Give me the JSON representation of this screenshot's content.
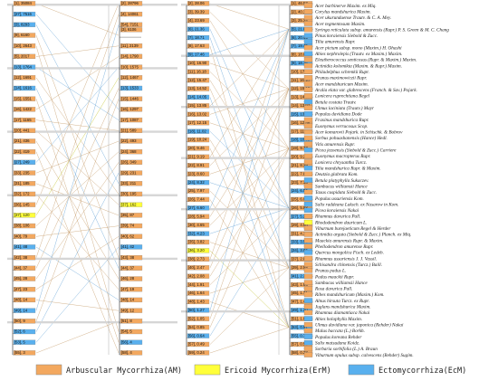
{
  "colors": {
    "am": "#f3a85f",
    "erm": "#ffff3a",
    "ecm": "#59b0ee",
    "tree_line": "#444444",
    "link_am": "#c8a070",
    "link_ecm": "#6aa6d8",
    "link_erm": "#c4c430"
  },
  "legend": [
    {
      "key": "am",
      "label": "Arbuscular Mycorrhiza(AM)"
    },
    {
      "key": "erm",
      "label": "Ericoid Mycorrhiza(ErM)"
    },
    {
      "key": "ecm",
      "label": "Ectomycorrhiza(EcM)"
    }
  ],
  "species": [
    "Acer barbinerve Maxim. ex Miq.",
    "Corylus mandshurica Maxim.",
    "Acer ukurunduense Trautv. & C. A. Mey.",
    "Acer tegmentosum Maxim.",
    "Syringa reticulata subsp. amurensis (Rupr.) P. S. Green & M. C. Chang",
    "Pinus koraiensis Siebold & Zucc.",
    "Tilia amurensis Rupr.",
    "Acer pictum subsp. mono (Maxim.) H. Ohashi",
    "Abies nephrolepis (Trautv. ex Maxim.) Maxim.",
    "Eleutherococcus senticosus (Rupr. & Maxim.) Maxim.",
    "Actinidia kolomikta (Maxim. & Rupr.) Maxim.",
    "Philadelphus schrenkii Rupr.",
    "Prunus maximowiczii Rupr.",
    "Acer mandshuricum Maxim.",
    "Aralia elata var. glabrescens (Franch. & Sav.) Pojark.",
    "Lonicera ruprechtiana Regel",
    "Betula costata Trautv.",
    "Ulmus laciniata (Trautv.) Mayr",
    "Populus davidiana Dode",
    "Fraxinus mandshurica Rupr.",
    "Euonymus verrucosus Scop.",
    "Acer komarovii Pojark. in Schischk. & Bobrov",
    "Sorbus pohuashanensis (Hance) Hedl.",
    "Vitis amurensis Rupr.",
    "Picea jezoensis (Siebold & Zucc.) Carriere",
    "Euonymus macropterus Rupr.",
    "Lonicera chrysantha Turcz.",
    "Tilia mandshurica Rupr. & Maxim.",
    "Deutzia glabrata Kom.",
    "Betula platyphylla Sukaczev.",
    "Sambucus williamsii Hance",
    "Taxus cuspidata Siebold & Zucc.",
    "Populus ussuriensis Kom.",
    "Salix raddeana Laksch. ex Nasarow in Kom.",
    "Picea koraiensis Nakai",
    "Rhamnus davurica Pall.",
    "Rhododendron dauricum L.",
    "Viburnum burejaeticum Regel & Herder",
    "Actinidia arguta (Siebold & Zucc.) Planch. ex Miq.",
    "Maackia amurensis Rupr. & Maxim.",
    "Phellodendron amurense Rupr.",
    "Quercus mongolica Fisch. ex Ledeb.",
    "Rhamnus ussuriensis J. J. Vassil.",
    "Schisandra chinensis (Turcz.) Baill.",
    "Prunus padus L.",
    "Padus maackii Rupr.",
    "Sambucus williamsii Hance",
    "Rosa davurica Pall.",
    "Ribes mandshuricum (Maxim.) Kom.",
    "Alnus hirsuta Turcz. ex Rupr.",
    "Juglans mandshurica Maxim.",
    "Rhamnus diamantiaca Nakai",
    "Abies holophylla Maxim.",
    "Ulmus davidiana var. japonica (Rehder) Nakai",
    "Malus baccata (L.) Borkh.",
    "Populus koreana Rehder",
    "Salix matsudana Koidz.",
    "Sorbaria sorbifolia (L.) A. Braun",
    "Viburnum opulus subsp. calvescens (Rehder) Sugim."
  ],
  "species_types": [
    "am",
    "am",
    "am",
    "am",
    "am",
    "ecm",
    "ecm",
    "am",
    "ecm",
    "am",
    "am",
    "am",
    "am",
    "am",
    "am",
    "am",
    "ecm",
    "am",
    "ecm",
    "am",
    "am",
    "am",
    "am",
    "am",
    "ecm",
    "am",
    "am",
    "ecm",
    "am",
    "ecm",
    "am",
    "am",
    "ecm",
    "ecm",
    "ecm",
    "am",
    "erm",
    "am",
    "am",
    "am",
    "am",
    "ecm",
    "am",
    "am",
    "am",
    "am",
    "am",
    "am",
    "am",
    "ecm",
    "am",
    "am",
    "ecm",
    "am",
    "am",
    "ecm",
    "ecm",
    "am",
    "am"
  ],
  "trees": [
    {
      "id": "left",
      "rows": [
        {
          "c1": "[1], 35084",
          "c2": "[2], 28796",
          "t1": "am",
          "t2": "am"
        },
        {
          "c1": "[27], 7516",
          "c2": "[4], 14061",
          "t1": "ecm",
          "t2": "am"
        },
        {
          "c1": "[3], 8293",
          "c2": "[54], 7151",
          "t1": "ecm",
          "t2": "am",
          "t3": "am",
          "c3": "[3], 6106"
        },
        {
          "c1": "[9], 6160",
          "c2": "",
          "t1": "am"
        },
        {
          "c1": "[10], 2643",
          "c2": "[11], 2139",
          "t1": "am",
          "t2": "am"
        },
        {
          "c1": "[5], 2017",
          "c2": "[14], 1790",
          "t1": "am",
          "t2": "am"
        },
        {
          "c1": "[13], 1764",
          "c2": "[10], 1575",
          "t1": "ecm",
          "t2": "am"
        },
        {
          "c1": "[12], 1691",
          "c2": "[12], 1467",
          "t1": "am",
          "t2": "am"
        },
        {
          "c1": "[14], 1616",
          "c2": "[13], 1533",
          "t1": "ecm",
          "t2": "ecm"
        },
        {
          "c1": "[15], 1551",
          "c2": "[15], 1446",
          "t1": "am",
          "t2": "am"
        },
        {
          "c1": "[16], 1422",
          "c2": "[16], 1297",
          "t1": "am",
          "t2": "am"
        },
        {
          "c1": "[17], 1165",
          "c2": "[17], 1087",
          "t1": "am",
          "t2": "am"
        },
        {
          "c1": "[20], 441",
          "c2": "[21], 589",
          "t1": "am",
          "t2": "am"
        },
        {
          "c1": "[21], 436",
          "c2": "[22], 493",
          "t1": "am",
          "t2": "am"
        },
        {
          "c1": "[22], 419",
          "c2": "[24], 368",
          "t1": "am",
          "t2": "am"
        },
        {
          "c1": "[27], 249",
          "c2": "[26], 349",
          "t1": "ecm",
          "t2": "am"
        },
        {
          "c1": "[33], 235",
          "c2": "[29], 231",
          "t1": "am",
          "t2": "am"
        },
        {
          "c1": "[31], 185",
          "c2": "[33], 211",
          "t1": "am",
          "t2": "am"
        },
        {
          "c1": "[32], 172",
          "c2": "[30], 195",
          "t1": "am",
          "t2": "am"
        },
        {
          "c1": "[36], 145",
          "c2": "[37], 162",
          "t1": "am",
          "t2": "erm"
        },
        {
          "c1": "[37], 120",
          "c2": "[35], 87",
          "t1": "erm",
          "t2": "am"
        },
        {
          "c1": "[38], 106",
          "c2": "[39], 74",
          "t1": "am",
          "t2": "am"
        },
        {
          "c1": "[40], 79",
          "c2": "[40], 62",
          "t1": "am",
          "t2": "am"
        },
        {
          "c1": "[41], 48",
          "c2": "[41], 42",
          "t1": "ecm",
          "t2": "ecm"
        },
        {
          "c1": "[42], 38",
          "c2": "[43], 38",
          "t1": "am",
          "t2": "am"
        },
        {
          "c1": "[44], 37",
          "c2": "[44], 37",
          "t1": "am",
          "t2": "am"
        },
        {
          "c1": "[45], 28",
          "c2": "[46], 28",
          "t1": "am",
          "t2": "am"
        },
        {
          "c1": "[47], 23",
          "c2": "[47], 19",
          "t1": "am",
          "t2": "am"
        },
        {
          "c1": "[48], 14",
          "c2": "[48], 14",
          "t1": "am",
          "t2": "am"
        },
        {
          "c1": "[49], 14",
          "c2": "[49], 12",
          "t1": "ecm",
          "t2": "am"
        },
        {
          "c1": "[50], 9",
          "c2": "[51], 8",
          "t1": "am",
          "t2": "am"
        },
        {
          "c1": "[52], 6",
          "c2": "[54], 5",
          "t1": "ecm",
          "t2": "am"
        },
        {
          "c1": "[53], 5",
          "c2": "[56], 4",
          "t1": "ecm",
          "t2": "ecm"
        },
        {
          "c1": "[55], 3",
          "c2": "[58], 4",
          "t1": "am",
          "t2": "am"
        }
      ]
    },
    {
      "id": "right",
      "rows": [
        {
          "c1": "[2], 28.06",
          "c2": "[1], 46.53",
          "t1": "am",
          "t2": "am"
        },
        {
          "c1": "[3], 39.39",
          "c2": "[2], 40.18",
          "t1": "am",
          "t2": "am"
        },
        {
          "c1": "[4], 23.69",
          "c2": "[3], 25.34",
          "t1": "am",
          "t2": "am"
        },
        {
          "c1": "[6], 21.36",
          "c2": "[5], 21.87",
          "t1": "ecm",
          "t2": "ecm"
        },
        {
          "c1": "[7], 18.71",
          "c2": "[6], 20.45",
          "t1": "ecm",
          "t2": "ecm"
        },
        {
          "c1": "[8], 17.63",
          "c2": "[7], 19.45",
          "t1": "am",
          "t2": "ecm"
        },
        {
          "c1": "[9], 17.46",
          "c2": "[8], 18.86",
          "t1": "ecm",
          "t2": "am"
        },
        {
          "c1": "[10], 16.90",
          "c2": "[9], 18.16",
          "t1": "am",
          "t2": "ecm"
        },
        {
          "c1": "[11], 16.18",
          "c2": "[10], 17.56",
          "t1": "am",
          "t2": "am"
        },
        {
          "c1": "[12], 15.47",
          "c2": "[11], 16.10",
          "t1": "am",
          "t2": "am"
        },
        {
          "c1": "[13], 14.52",
          "c2": "[12], 15.10",
          "t1": "am",
          "t2": "am"
        },
        {
          "c1": "[14], 14.05",
          "c2": "[13], 14.50",
          "t1": "ecm",
          "t2": "am"
        },
        {
          "c1": "[15], 13.85",
          "c2": "[14], 13.97",
          "t1": "am",
          "t2": "am"
        },
        {
          "c1": "[16], 13.02",
          "c2": "[15], 13.30",
          "t1": "am",
          "t2": "ecm"
        },
        {
          "c1": "[17], 12.15",
          "c2": "[16], 12.56",
          "t1": "am",
          "t2": "am"
        },
        {
          "c1": "[18], 11.02",
          "c2": "[17], 11.84",
          "t1": "ecm",
          "t2": "am"
        },
        {
          "c1": "[19], 10.24",
          "c2": "[18], 10.85",
          "t1": "am",
          "t2": "ecm"
        },
        {
          "c1": "[20], 9.46",
          "c2": "[19], 9.77",
          "t1": "am",
          "t2": "am"
        },
        {
          "c1": "[21], 9.19",
          "c2": "[20], 9.28",
          "t1": "am",
          "t2": "am"
        },
        {
          "c1": "[22], 8.91",
          "c2": "[21], 8.39",
          "t1": "am",
          "t2": "am"
        },
        {
          "c1": "[23], 8.60",
          "c2": "[22], 7.84",
          "t1": "am",
          "t2": "am"
        },
        {
          "c1": "[24], 8.32",
          "c2": "[23], 7.13",
          "t1": "ecm",
          "t2": "am"
        },
        {
          "c1": "[25], 7.97",
          "c2": "[24], 6.52",
          "t1": "am",
          "t2": "ecm"
        },
        {
          "c1": "[26], 7.44",
          "c2": "[25], 6.09",
          "t1": "am",
          "t2": "am"
        },
        {
          "c1": "[27], 6.60",
          "c2": "[26], 5.88",
          "t1": "ecm",
          "t2": "am"
        },
        {
          "c1": "[28], 5.94",
          "c2": "[27], 5.28",
          "t1": "am",
          "t2": "ecm"
        },
        {
          "c1": "[30], 4.65",
          "c2": "[29], 4.86",
          "t1": "am",
          "t2": "am"
        },
        {
          "c1": "[32], 4.23",
          "c2": "[31], 4.15",
          "t1": "ecm",
          "t2": "am"
        },
        {
          "c1": "[35], 3.82",
          "c2": "[33], 3.56",
          "t1": "am",
          "t2": "ecm"
        },
        {
          "c1": "[36], 3.20",
          "c2": "[34], 3.06",
          "t1": "erm",
          "t2": "ecm"
        },
        {
          "c1": "[38], 2.73",
          "c2": "[37], 2.89",
          "t1": "am",
          "t2": "am"
        },
        {
          "c1": "[40], 2.47",
          "c2": "[39], 2.58",
          "t1": "am",
          "t2": "am"
        },
        {
          "c1": "[42], 2.08",
          "c2": "[41], 2.39",
          "t1": "am",
          "t2": "ecm"
        },
        {
          "c1": "[44], 1.91",
          "c2": "[43], 1.94",
          "t1": "am",
          "t2": "am"
        },
        {
          "c1": "[46], 1.64",
          "c2": "[45], 1.71",
          "t1": "am",
          "t2": "am"
        },
        {
          "c1": "[48], 1.43",
          "c2": "[47], 1.46",
          "t1": "am",
          "t2": "am"
        },
        {
          "c1": "[50], 1.27",
          "c2": "[49], 1.20",
          "t1": "ecm",
          "t2": "ecm"
        },
        {
          "c1": "[52], 1.05",
          "c2": "[51], 1.07",
          "t1": "am",
          "t2": "am"
        },
        {
          "c1": "[54], 0.85",
          "c2": "[53], 0.91",
          "t1": "am",
          "t2": "ecm"
        },
        {
          "c1": "[56], 0.64",
          "c2": "[55], 0.70",
          "t1": "ecm",
          "t2": "ecm"
        },
        {
          "c1": "[57], 0.49",
          "c2": "[57], 0.58",
          "t1": "am",
          "t2": "am"
        },
        {
          "c1": "[59], 0.24",
          "c2": "[58], 0.28",
          "t1": "am",
          "t2": "am"
        }
      ]
    }
  ]
}
